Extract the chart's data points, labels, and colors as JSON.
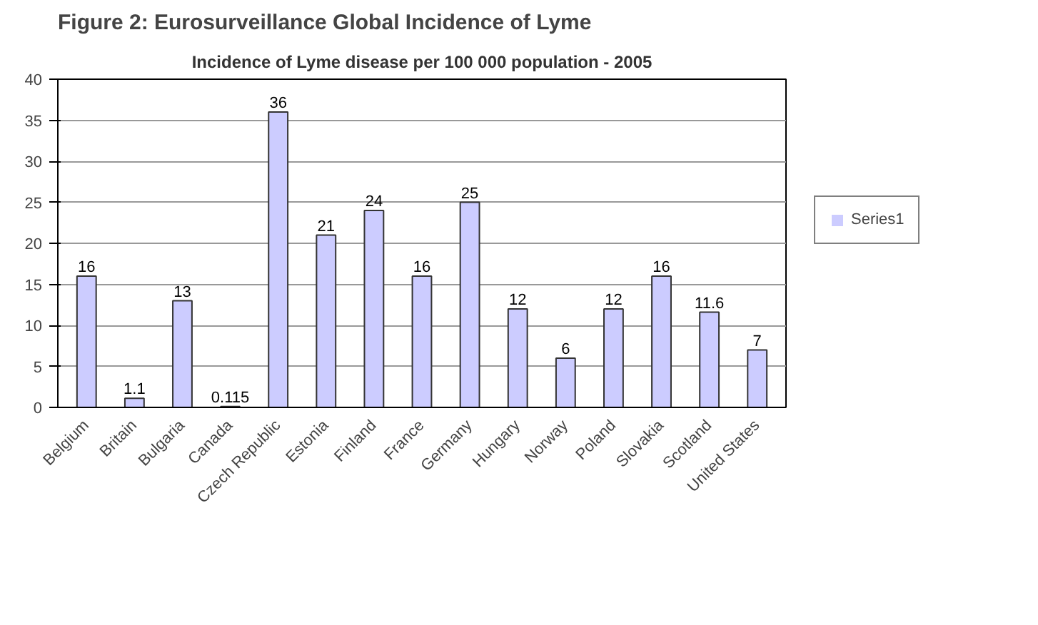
{
  "chart_data": {
    "type": "bar",
    "title": "Figure 2:  Eurosurveillance Global Incidence of Lyme",
    "subtitle": "Incidence of Lyme disease per 100 000 population - 2005",
    "categories": [
      "Belgium",
      "Britain",
      "Bulgaria",
      "Canada",
      "Czech Republic",
      "Estonia",
      "Finland",
      "France",
      "Germany",
      "Hungary",
      "Norway",
      "Poland",
      "Slovakia",
      "Scotland",
      "United States"
    ],
    "series": [
      {
        "name": "Series1",
        "color": "#ccccff",
        "values": [
          16,
          1.1,
          13,
          0.115,
          36,
          21,
          24,
          16,
          25,
          12,
          6,
          12,
          16,
          11.6,
          7
        ]
      }
    ],
    "ylim": [
      0,
      40
    ],
    "yticks": [
      0,
      5,
      10,
      15,
      20,
      25,
      30,
      35,
      40
    ],
    "grid": "y",
    "legend": "right",
    "data_labels": true
  }
}
